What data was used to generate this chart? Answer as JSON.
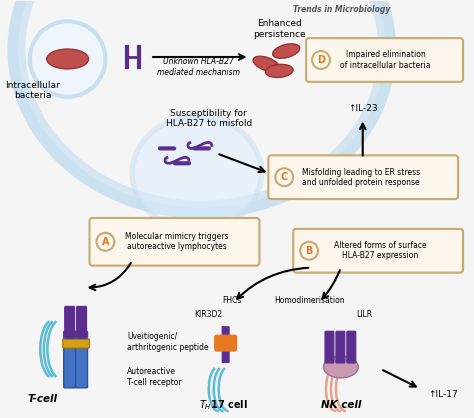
{
  "bg_color": "#f5f5f5",
  "cell_arc_color": "#c8dff0",
  "cell_arc_inner": "#ddeeff",
  "title": "",
  "box_A_text": "Molecular mimicry triggers\nautoreactive lymphocytes",
  "box_B_text": "Altered forms of surface\nHLA-B27 expression",
  "box_C_text": "Misfolding leading to ER stress\nand unfolded protein response",
  "box_D_text": "Impaired elimination\nof intracellular bacteria",
  "label_A": "A",
  "label_B": "B",
  "label_C": "C",
  "label_D": "D",
  "tcell_label": "T-cell",
  "th17_label": "Tₕ±17 cell",
  "nk_label": "NK cell",
  "kir_label": "KIR3D2",
  "lilr_label": "LILR",
  "fhcs_label": "FHCs",
  "homo_label": "Homodimerisation",
  "autoreactive_label": "Autoreactive\nT-cell receptor",
  "uveit_label": "Uveitiogenic/\narthritogenic peptide",
  "suscept_label": "Susceptibility for\nHLA-B27 to misfold",
  "intracell_label": "Intracellular\nbacteria",
  "unknown_label": "Unknown HLA-B27\nmediated mechanism",
  "enhanced_label": "Enhanced\npersistence",
  "il17_label": "↑IL-17",
  "il23_label": "↑IL-23",
  "trends_label": "Trends in Microbiology",
  "purple": "#5b2d8e",
  "orange": "#e87722",
  "teal": "#5bbcd6",
  "red_bact": "#c0504d",
  "box_border": "#c8a96e",
  "box_fill": "#fdf6ec",
  "gray_border": "#999999",
  "arrow_color": "#222222"
}
